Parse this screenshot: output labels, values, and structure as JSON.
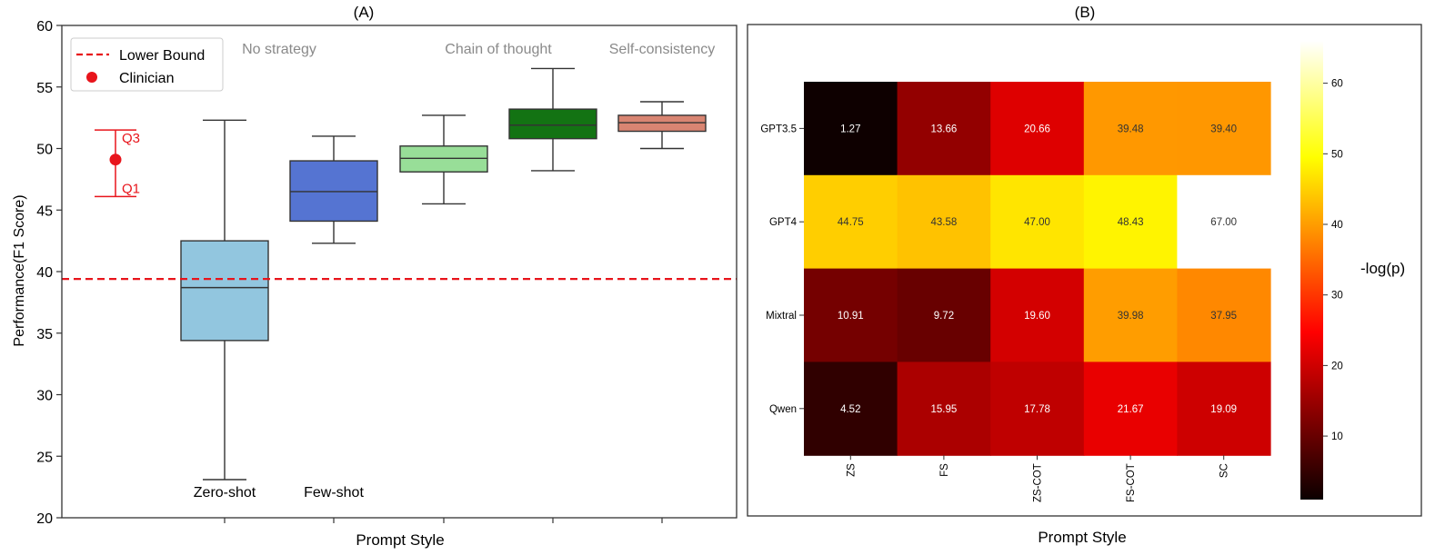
{
  "chart_data": [
    {
      "type": "box",
      "title": "(A)",
      "xlabel": "Prompt Style",
      "ylabel": "Performance(F1 Score)",
      "ylim": [
        20,
        60
      ],
      "yticks": [
        20,
        25,
        30,
        35,
        40,
        45,
        50,
        55,
        60
      ],
      "grid": false,
      "legend": {
        "position": "top-left",
        "entries": [
          {
            "label": "Lower Bound",
            "kind": "dashed-line",
            "color": "#e8141b"
          },
          {
            "label": "Clinician",
            "kind": "dot",
            "color": "#e8141b"
          }
        ]
      },
      "lower_bound": 39.4,
      "clinician": {
        "median": 49.1,
        "q1": 46.1,
        "q3": 51.5,
        "q1_label": "Q1",
        "q3_label": "Q3",
        "color": "#e8141b"
      },
      "boxes": [
        {
          "min": 23.1,
          "q1": 34.4,
          "median": 38.7,
          "q3": 42.5,
          "max": 52.3,
          "color": "#92c6df"
        },
        {
          "min": 42.3,
          "q1": 44.1,
          "median": 46.5,
          "q3": 49.0,
          "max": 51.0,
          "color": "#5574d2"
        },
        {
          "min": 45.5,
          "q1": 48.1,
          "median": 49.2,
          "q3": 50.2,
          "max": 52.7,
          "color": "#98de98"
        },
        {
          "min": 48.2,
          "q1": 50.8,
          "median": 51.9,
          "q3": 53.2,
          "max": 56.5,
          "color": "#137313"
        },
        {
          "min": 50.0,
          "q1": 51.4,
          "median": 52.1,
          "q3": 52.7,
          "max": 53.8,
          "color": "#d98572"
        }
      ],
      "bottom_labels": [
        "Zero-shot",
        "Few-shot"
      ],
      "group_labels": [
        "No strategy",
        "Chain of thought",
        "Self-consistency"
      ]
    },
    {
      "type": "heatmap",
      "title": "(B)",
      "xlabel": "Prompt Style",
      "rows": [
        "GPT3.5",
        "GPT4",
        "Mixtral",
        "Qwen"
      ],
      "columns": [
        "ZS",
        "FS",
        "ZS-COT",
        "FS-COT",
        "SC"
      ],
      "values": [
        [
          1.27,
          13.66,
          20.66,
          39.48,
          39.4
        ],
        [
          44.75,
          43.58,
          47.0,
          48.43,
          67.0
        ],
        [
          10.91,
          9.72,
          19.6,
          39.98,
          37.95
        ],
        [
          4.52,
          15.95,
          17.78,
          21.67,
          19.09
        ]
      ],
      "value_labels": [
        [
          "1.27",
          "13.66",
          "20.66",
          "39.48",
          "39.40"
        ],
        [
          "44.75",
          "43.58",
          "47.00",
          "48.43",
          "67.00"
        ],
        [
          "10.91",
          "9.72",
          "19.60",
          "39.98",
          "37.95"
        ],
        [
          "4.52",
          "15.95",
          "17.78",
          "21.67",
          "19.09"
        ]
      ],
      "colormap": "hot",
      "colorbar": {
        "label": "-log(p)",
        "range": [
          1,
          66
        ],
        "ticks": [
          10,
          20,
          30,
          40,
          50,
          60
        ]
      }
    }
  ]
}
